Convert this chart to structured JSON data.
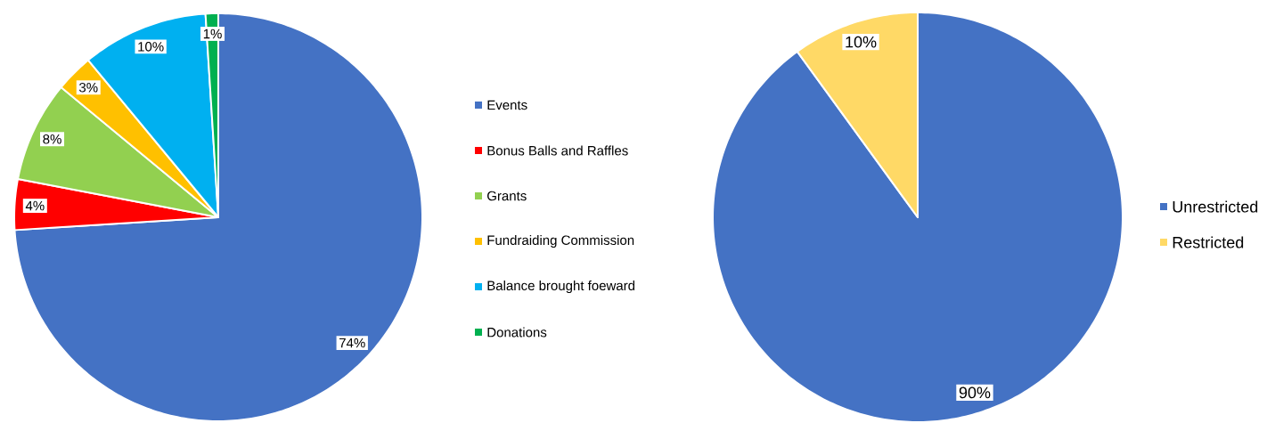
{
  "chart_data": [
    {
      "type": "pie",
      "categories": [
        "Events",
        "Bonus Balls and Raffles",
        "Grants",
        "Fundraiding Commission",
        "Balance brought foeward",
        "Donations"
      ],
      "values": [
        74,
        4,
        8,
        3,
        10,
        1
      ],
      "value_labels": [
        "74%",
        "4%",
        "8%",
        "3%",
        "10%",
        "1%"
      ],
      "colors": [
        "#4472c4",
        "#ff0000",
        "#92d050",
        "#ffc000",
        "#00b0f0",
        "#00b050"
      ],
      "legend": "right"
    },
    {
      "type": "pie",
      "categories": [
        "Unrestricted",
        "Restricted"
      ],
      "values": [
        90,
        10
      ],
      "value_labels": [
        "90%",
        "10%"
      ],
      "colors": [
        "#4472c4",
        "#ffd966"
      ],
      "legend": "right"
    }
  ]
}
